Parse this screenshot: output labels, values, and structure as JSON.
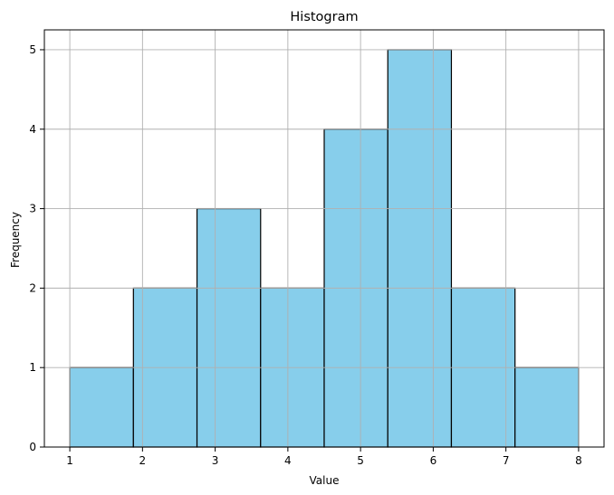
{
  "chart_data": {
    "type": "bar",
    "title": "Histogram",
    "xlabel": "Value",
    "ylabel": "Frequency",
    "bin_edges": [
      1,
      1.875,
      2.75,
      3.625,
      4.5,
      5.375,
      6.25,
      7.125,
      8
    ],
    "values": [
      1,
      2,
      3,
      2,
      4,
      5,
      2,
      1
    ],
    "xlim": [
      0.65,
      8.35
    ],
    "ylim": [
      0,
      5.25
    ],
    "xticks": [
      1,
      2,
      3,
      4,
      5,
      6,
      7,
      8
    ],
    "yticks": [
      0,
      1,
      2,
      3,
      4,
      5
    ],
    "grid": true,
    "bar_color": "#87CEEB",
    "edge_color": "#000000",
    "grid_color": "#b0b0b0"
  }
}
